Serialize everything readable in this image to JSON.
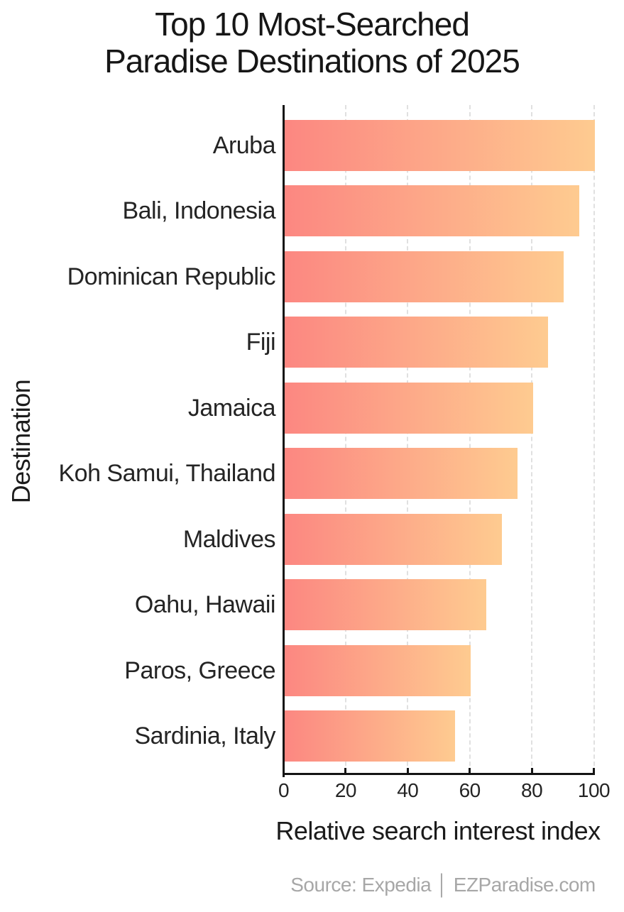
{
  "title": "Top 10 Most-Searched\nParadise Destinations of 2025",
  "source": "Source: Expedia │ EZParadise.com",
  "chart_data": {
    "type": "bar",
    "orientation": "horizontal",
    "title": "Top 10 Most-Searched Paradise Destinations of 2025",
    "categories": [
      "Aruba",
      "Bali, Indonesia",
      "Dominican Republic",
      "Fiji",
      "Jamaica",
      "Koh Samui, Thailand",
      "Maldives",
      "Oahu, Hawaii",
      "Paros, Greece",
      "Sardinia, Italy"
    ],
    "values": [
      100,
      95,
      90,
      85,
      80,
      75,
      70,
      65,
      60,
      55
    ],
    "xlabel": "Relative search interest index",
    "ylabel": "Destination",
    "xlim": [
      0,
      100
    ],
    "xticks": [
      0,
      20,
      40,
      60,
      80,
      100
    ],
    "grid": "vertical-dashed",
    "legend": "none",
    "bar_gradient": [
      "#fc8781",
      "#fecb90"
    ],
    "axis_color": "#141414",
    "grid_color": "#e0e0e0",
    "text_color": "#1f1f1f",
    "source_color": "#a7a7a7"
  }
}
